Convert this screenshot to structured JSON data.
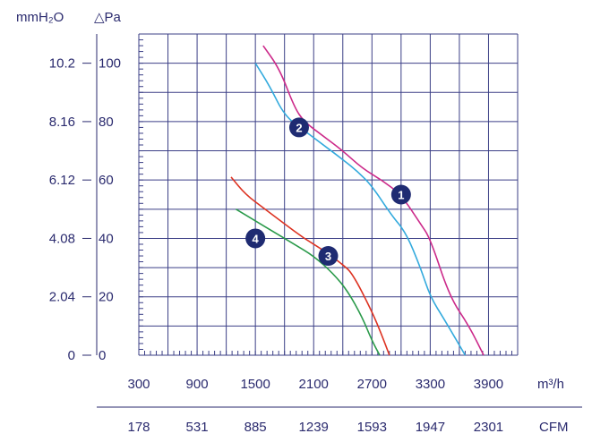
{
  "chart_data": {
    "type": "line",
    "x_units": [
      "m³/h",
      "CFM"
    ],
    "y_units": [
      "mmH₂O",
      "△Pa"
    ],
    "x_ticks_m3h": [
      "300",
      "900",
      "1500",
      "2100",
      "2700",
      "3300",
      "3900"
    ],
    "x_ticks_cfm": [
      "178",
      "531",
      "885",
      "1239",
      "1593",
      "1947",
      "2301"
    ],
    "y_ticks_pa": [
      "0",
      "20",
      "40",
      "60",
      "80",
      "100"
    ],
    "y_ticks_mmh2o": [
      "0",
      "2.04",
      "4.08",
      "6.12",
      "8.16",
      "10.2"
    ],
    "xlim": [
      300,
      4200
    ],
    "ylim": [
      0,
      110
    ],
    "grid": true,
    "series": [
      {
        "label": "1",
        "color": "#cc2a8a",
        "points": [
          [
            1580,
            106
          ],
          [
            1750,
            98
          ],
          [
            1900,
            85
          ],
          [
            2000,
            80
          ],
          [
            2200,
            75
          ],
          [
            2400,
            70
          ],
          [
            2600,
            64
          ],
          [
            2800,
            60
          ],
          [
            3000,
            55
          ],
          [
            3200,
            45
          ],
          [
            3300,
            40
          ],
          [
            3500,
            20
          ],
          [
            3700,
            10
          ],
          [
            3850,
            0
          ]
        ]
      },
      {
        "label": "2",
        "color": "#33aadd",
        "points": [
          [
            1500,
            100
          ],
          [
            1650,
            92
          ],
          [
            1800,
            82
          ],
          [
            2000,
            77
          ],
          [
            2200,
            72
          ],
          [
            2400,
            67
          ],
          [
            2550,
            63
          ],
          [
            2700,
            58
          ],
          [
            2900,
            48
          ],
          [
            3050,
            42
          ],
          [
            3200,
            30
          ],
          [
            3300,
            20
          ],
          [
            3450,
            12
          ],
          [
            3660,
            0
          ]
        ]
      },
      {
        "label": "3",
        "color": "#dd3322",
        "points": [
          [
            1250,
            61
          ],
          [
            1400,
            55
          ],
          [
            1600,
            50
          ],
          [
            1800,
            45
          ],
          [
            2000,
            40
          ],
          [
            2200,
            36
          ],
          [
            2400,
            31
          ],
          [
            2500,
            28
          ],
          [
            2700,
            15
          ],
          [
            2800,
            7
          ],
          [
            2880,
            0
          ]
        ]
      },
      {
        "label": "4",
        "color": "#2a9a4a",
        "points": [
          [
            1300,
            50
          ],
          [
            1500,
            46
          ],
          [
            1700,
            42
          ],
          [
            1900,
            38
          ],
          [
            2100,
            34
          ],
          [
            2300,
            28
          ],
          [
            2450,
            22
          ],
          [
            2600,
            13
          ],
          [
            2700,
            5
          ],
          [
            2780,
            0
          ]
        ]
      }
    ],
    "labels_pos": {
      "1": [
        3000,
        55
      ],
      "2": [
        1950,
        78
      ],
      "3": [
        2250,
        34
      ],
      "4": [
        1500,
        40
      ]
    }
  }
}
